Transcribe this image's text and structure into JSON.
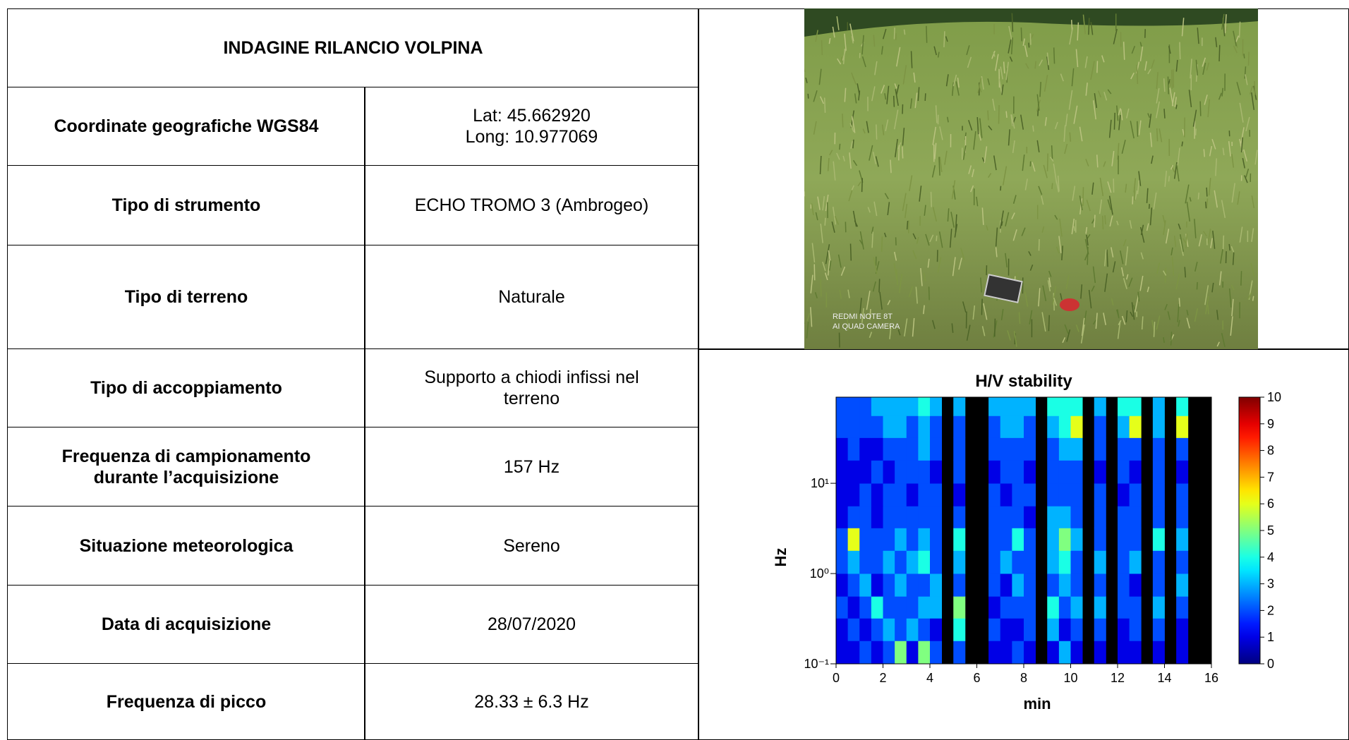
{
  "table": {
    "title": "INDAGINE RILANCIO VOLPINA",
    "rows": [
      {
        "label": [
          "Coordinate geografiche WGS84"
        ],
        "value": [
          "Lat: 45.662920",
          "Long: 10.977069"
        ]
      },
      {
        "label": [
          "Tipo di strumento"
        ],
        "value": [
          "ECHO TROMO 3 (Ambrogeo)"
        ]
      },
      {
        "label": [
          "Tipo di terreno"
        ],
        "value": [
          "Naturale"
        ]
      },
      {
        "label": [
          "Tipo di accoppiamento"
        ],
        "value": [
          "Supporto a chiodi infissi nel",
          "terreno"
        ]
      },
      {
        "label": [
          "Frequenza di campionamento",
          "durante l’acquisizione"
        ],
        "value": [
          "157 Hz"
        ]
      },
      {
        "label": [
          "Situazione meteorologica"
        ],
        "value": [
          "Sereno"
        ]
      },
      {
        "label": [
          "Data di acquisizione"
        ],
        "value": [
          "28/07/2020"
        ]
      },
      {
        "label": [
          "Frequenza di picco"
        ],
        "value": [
          "28.33 ± 6.3 Hz"
        ]
      }
    ]
  },
  "photo": {
    "watermark": [
      "REDMI NOTE 8T",
      "AI QUAD CAMERA"
    ]
  },
  "chart_data": {
    "type": "heatmap",
    "title": "H/V stability",
    "x_label": "min",
    "y_label": "Hz",
    "xlim": [
      0,
      16
    ],
    "xticks": [
      0,
      2,
      4,
      6,
      8,
      10,
      12,
      14,
      16
    ],
    "ylim": [
      0.1,
      90
    ],
    "log_y": true,
    "yticks": [
      {
        "value": 0.1,
        "label": "10⁻¹"
      },
      {
        "value": 1,
        "label": "10⁰"
      },
      {
        "value": 10,
        "label": "10¹"
      }
    ],
    "colormap": "jet",
    "clim": [
      0,
      10
    ],
    "colorbar_ticks": [
      0,
      1,
      2,
      3,
      4,
      5,
      6,
      7,
      8,
      9,
      10
    ],
    "x_bins": [
      0,
      0.5,
      1,
      1.5,
      2,
      2.5,
      3,
      3.5,
      4,
      4.5,
      5,
      5.5,
      6,
      6.5,
      7,
      7.5,
      8,
      8.5,
      9,
      9.5,
      10,
      10.5,
      11,
      11.5,
      12,
      12.5,
      13,
      13.5,
      14,
      14.5,
      15,
      15.5,
      16
    ],
    "y_bins": [
      0.1,
      0.18,
      0.32,
      0.56,
      1,
      1.8,
      3.2,
      5.6,
      10,
      18,
      32,
      56,
      90
    ],
    "z": [
      [
        1,
        1,
        2,
        1,
        2,
        5,
        1,
        5,
        2,
        null,
        2,
        null,
        null,
        1,
        1,
        2,
        1,
        null,
        1,
        3,
        1,
        null,
        1,
        null,
        1,
        1,
        null,
        1,
        null,
        1,
        null,
        null
      ],
      [
        1,
        2,
        1,
        2,
        3,
        2,
        3,
        2,
        1,
        null,
        4,
        null,
        null,
        2,
        1,
        1,
        2,
        null,
        3,
        1,
        2,
        null,
        2,
        null,
        1,
        2,
        null,
        2,
        null,
        1,
        null,
        null
      ],
      [
        2,
        1,
        2,
        4,
        2,
        2,
        2,
        3,
        3,
        null,
        5,
        null,
        null,
        1,
        2,
        2,
        2,
        null,
        4,
        2,
        3,
        null,
        3,
        null,
        2,
        2,
        null,
        3,
        null,
        2,
        null,
        null
      ],
      [
        1,
        2,
        3,
        1,
        2,
        3,
        2,
        2,
        3,
        null,
        2,
        null,
        null,
        2,
        1,
        3,
        2,
        null,
        2,
        3,
        2,
        null,
        2,
        null,
        2,
        1,
        null,
        2,
        null,
        3,
        null,
        null
      ],
      [
        2,
        3,
        2,
        2,
        3,
        2,
        3,
        4,
        2,
        null,
        3,
        null,
        null,
        2,
        3,
        2,
        2,
        null,
        3,
        4,
        2,
        null,
        3,
        null,
        2,
        3,
        null,
        2,
        null,
        2,
        null,
        null
      ],
      [
        2,
        6,
        2,
        2,
        2,
        3,
        2,
        3,
        2,
        null,
        4,
        null,
        null,
        2,
        2,
        4,
        2,
        null,
        3,
        5,
        3,
        null,
        2,
        null,
        2,
        2,
        null,
        4,
        null,
        3,
        null,
        null
      ],
      [
        1,
        2,
        2,
        1,
        2,
        2,
        2,
        2,
        2,
        null,
        2,
        null,
        null,
        2,
        2,
        2,
        1,
        null,
        3,
        3,
        2,
        null,
        2,
        null,
        2,
        2,
        null,
        2,
        null,
        2,
        null,
        null
      ],
      [
        1,
        1,
        2,
        1,
        2,
        2,
        1,
        2,
        2,
        null,
        1,
        null,
        null,
        2,
        1,
        2,
        2,
        null,
        2,
        2,
        2,
        null,
        2,
        null,
        1,
        2,
        null,
        2,
        null,
        2,
        null,
        null
      ],
      [
        1,
        1,
        1,
        2,
        1,
        2,
        2,
        2,
        1,
        null,
        2,
        null,
        null,
        1,
        2,
        2,
        1,
        null,
        2,
        2,
        2,
        null,
        1,
        null,
        2,
        1,
        null,
        2,
        null,
        1,
        null,
        null
      ],
      [
        1,
        2,
        1,
        1,
        2,
        2,
        2,
        3,
        2,
        null,
        2,
        null,
        null,
        2,
        2,
        2,
        2,
        null,
        2,
        3,
        3,
        null,
        2,
        null,
        2,
        2,
        null,
        2,
        null,
        2,
        null,
        null
      ],
      [
        2,
        2,
        2,
        2,
        3,
        3,
        2,
        3,
        2,
        null,
        2,
        null,
        null,
        2,
        3,
        3,
        2,
        null,
        3,
        4,
        6,
        null,
        2,
        null,
        3,
        6,
        null,
        3,
        null,
        6,
        null,
        null
      ],
      [
        2,
        2,
        2,
        3,
        3,
        3,
        3,
        4,
        3,
        null,
        3,
        null,
        null,
        3,
        3,
        3,
        3,
        null,
        4,
        4,
        4,
        null,
        3,
        null,
        4,
        4,
        null,
        3,
        null,
        4,
        null,
        null
      ]
    ]
  }
}
